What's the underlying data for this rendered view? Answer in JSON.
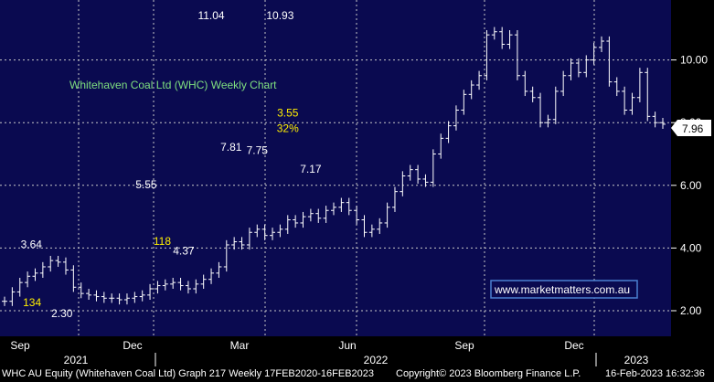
{
  "chart_data": {
    "type": "line",
    "title": "Whitehaven Coal Ltd (WHC) Weekly Chart",
    "y_ticks": [
      "10.00",
      "8.00",
      "6.00",
      "4.00",
      "2.00"
    ],
    "ylim": [
      1.5,
      11.8
    ],
    "x_month_ticks": [
      "Sep",
      "Dec",
      "Mar",
      "Jun",
      "Sep",
      "Dec"
    ],
    "x_year_labels": [
      "2021",
      "2022",
      "2023"
    ],
    "last_price": "7.96",
    "grid": true,
    "series": [
      {
        "values": [
          2.3,
          2.6,
          2.9,
          3.1,
          3.2,
          3.4,
          3.6,
          3.55,
          3.3,
          2.75,
          2.55,
          2.5,
          2.45,
          2.4,
          2.4,
          2.35,
          2.4,
          2.45,
          2.5,
          2.7,
          2.8,
          2.85,
          2.9,
          2.8,
          2.7,
          2.85,
          3.0,
          3.2,
          3.4,
          4.1,
          4.2,
          4.1,
          4.5,
          4.6,
          4.4,
          4.5,
          4.6,
          4.9,
          4.8,
          5.0,
          5.1,
          4.95,
          5.2,
          5.3,
          5.45,
          5.2,
          4.9,
          4.5,
          4.6,
          4.8,
          5.3,
          5.8,
          6.3,
          6.5,
          6.2,
          6.1,
          7.0,
          7.5,
          7.9,
          8.4,
          8.9,
          9.2,
          9.5,
          10.8,
          10.9,
          10.5,
          10.8,
          9.5,
          9.0,
          8.8,
          8.0,
          8.1,
          9.0,
          9.5,
          9.9,
          9.6,
          10.0,
          10.4,
          10.6,
          9.3,
          9.0,
          8.4,
          8.8,
          9.6,
          8.2,
          8.0,
          7.95
        ]
      }
    ],
    "annotations": [
      {
        "text": "11.04",
        "color": "#ffffff",
        "x": 27,
        "y": 11.3
      },
      {
        "text": "10.93",
        "color": "#ffffff",
        "x": 36,
        "y": 11.3
      },
      {
        "text": "5.55",
        "color": "#ffffff",
        "x": 18.5,
        "y": 5.9
      },
      {
        "text": "3.64",
        "color": "#ffffff",
        "x": 3.5,
        "y": 4.0
      },
      {
        "text": "7.81",
        "color": "#ffffff",
        "x": 29.6,
        "y": 7.1
      },
      {
        "text": "7.75",
        "color": "#ffffff",
        "x": 33,
        "y": 7.0
      },
      {
        "text": "7.17",
        "color": "#ffffff",
        "x": 40,
        "y": 6.4
      },
      {
        "text": "4.37",
        "color": "#ffffff",
        "x": 23.4,
        "y": 3.8
      },
      {
        "text": "2.30",
        "color": "#ffffff",
        "x": 7.5,
        "y": 1.8
      },
      {
        "text": "134",
        "color": "#ffee00",
        "x": 3.6,
        "y": 2.15
      },
      {
        "text": "118",
        "color": "#ffee00",
        "x": 20.6,
        "y": 4.1
      },
      {
        "text": "3.55",
        "color": "#ffee00",
        "x": 37,
        "y": 8.2
      },
      {
        "text": "32%",
        "color": "#ffee00",
        "x": 37,
        "y": 7.7
      }
    ]
  },
  "watermark": "www.marketmatters.com.au",
  "footer": {
    "left": "WHC AU Equity (Whitehaven Coal Ltd)  Graph 217  Weekly 17FEB2020-16FEB2023",
    "center": "Copyright© 2023 Bloomberg Finance L.P.",
    "right": "16-Feb-2023 16:32:36"
  },
  "colors": {
    "plot_bg": "#0a0a50",
    "grid": "#c8c8c8",
    "price": "#ffffff",
    "title": "#7fe07f",
    "highlight": "#ffee00",
    "watermark_border": "#4a7fd0"
  }
}
